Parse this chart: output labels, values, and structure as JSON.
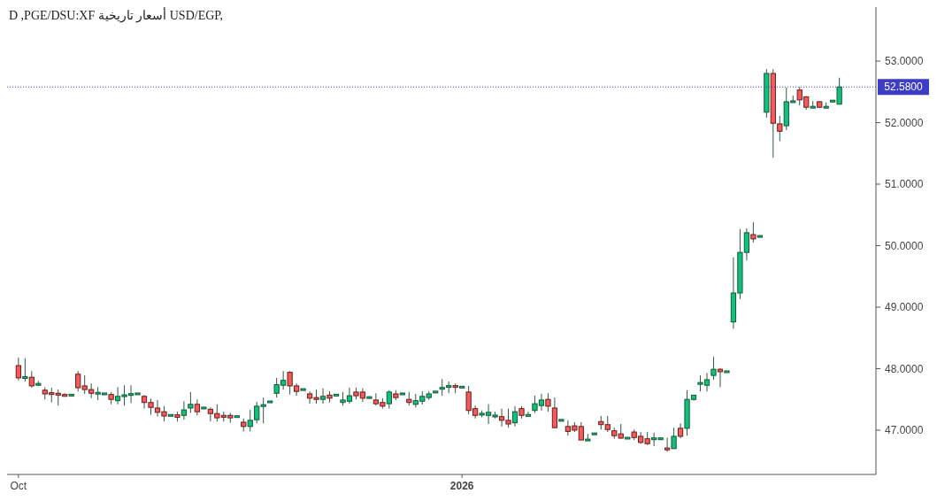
{
  "chart_data": {
    "type": "candlestick",
    "title": "D ,PGE/DSU:XF أسعار تاريخية USD/EGP,",
    "categories": [
      "Oct",
      null,
      null,
      null,
      null,
      null,
      null,
      null,
      null,
      null,
      null,
      null,
      null,
      null,
      null,
      null,
      null,
      null,
      null,
      null,
      null,
      null,
      null,
      null,
      null,
      null,
      null,
      null,
      null,
      null,
      null,
      null,
      null,
      null,
      null,
      null,
      null,
      null,
      null,
      null,
      null,
      null,
      null,
      null,
      null,
      null,
      null,
      null,
      null,
      null,
      null,
      null,
      null,
      null,
      null,
      null,
      null,
      null,
      null,
      null,
      null,
      null,
      null,
      null,
      null,
      null,
      null,
      "2026",
      null,
      null,
      null,
      null,
      null,
      null,
      null,
      null,
      null,
      null,
      null,
      null,
      null,
      null,
      null,
      null,
      null,
      null,
      null,
      null,
      null,
      null,
      null,
      null,
      null,
      null,
      null,
      null,
      null,
      null,
      null,
      null,
      null,
      null,
      null,
      null,
      null,
      null,
      null,
      null,
      null,
      null,
      null,
      null,
      null,
      null,
      null,
      null,
      null,
      null,
      null,
      null,
      null,
      null,
      null,
      null,
      null
    ],
    "ohlc": [
      [
        48.05,
        48.18,
        47.81,
        47.85
      ],
      [
        47.85,
        48.17,
        47.79,
        47.86
      ],
      [
        47.86,
        47.96,
        47.69,
        47.72
      ],
      [
        47.74,
        47.8,
        47.72,
        47.75
      ],
      [
        47.65,
        47.7,
        47.5,
        47.59
      ],
      [
        47.6,
        47.69,
        47.45,
        47.59
      ],
      [
        47.6,
        47.66,
        47.4,
        47.57
      ],
      [
        47.58,
        47.6,
        47.55,
        47.55
      ],
      [
        47.57,
        47.58,
        47.56,
        47.57
      ],
      [
        47.91,
        47.96,
        47.63,
        47.69
      ],
      [
        47.72,
        47.89,
        47.59,
        47.66
      ],
      [
        47.66,
        47.76,
        47.52,
        47.6
      ],
      [
        47.6,
        47.7,
        47.49,
        47.6
      ],
      [
        47.59,
        47.6,
        47.58,
        47.59
      ],
      [
        47.58,
        47.62,
        47.42,
        47.5
      ],
      [
        47.48,
        47.7,
        47.42,
        47.55
      ],
      [
        47.56,
        47.73,
        47.4,
        47.56
      ],
      [
        47.58,
        47.73,
        47.44,
        47.58
      ],
      [
        47.59,
        47.6,
        47.58,
        47.59
      ],
      [
        47.55,
        47.57,
        47.35,
        47.45
      ],
      [
        47.45,
        47.51,
        47.25,
        47.37
      ],
      [
        47.36,
        47.49,
        47.22,
        47.29
      ],
      [
        47.3,
        47.39,
        47.14,
        47.23
      ],
      [
        47.24,
        47.25,
        47.23,
        47.24
      ],
      [
        47.25,
        47.3,
        47.14,
        47.21
      ],
      [
        47.24,
        47.47,
        47.17,
        47.33
      ],
      [
        47.36,
        47.62,
        47.28,
        47.42
      ],
      [
        47.42,
        47.5,
        47.24,
        47.3
      ],
      [
        47.36,
        47.37,
        47.35,
        47.36
      ],
      [
        47.34,
        47.37,
        47.14,
        47.27
      ],
      [
        47.27,
        47.42,
        47.14,
        47.2
      ],
      [
        47.24,
        47.3,
        47.14,
        47.21
      ],
      [
        47.24,
        47.28,
        47.12,
        47.2
      ],
      [
        47.22,
        47.23,
        47.21,
        47.22
      ],
      [
        47.13,
        47.19,
        46.98,
        47.06
      ],
      [
        47.06,
        47.33,
        46.98,
        47.16
      ],
      [
        47.17,
        47.46,
        47.11,
        47.39
      ],
      [
        47.4,
        47.53,
        47.11,
        47.4
      ],
      [
        47.46,
        47.47,
        47.45,
        47.46
      ],
      [
        47.6,
        47.85,
        47.53,
        47.74
      ],
      [
        47.73,
        47.96,
        47.66,
        47.81
      ],
      [
        47.94,
        47.96,
        47.58,
        47.72
      ],
      [
        47.72,
        47.76,
        47.56,
        47.63
      ],
      [
        47.66,
        47.67,
        47.65,
        47.66
      ],
      [
        47.59,
        47.63,
        47.43,
        47.52
      ],
      [
        47.53,
        47.66,
        47.43,
        47.5
      ],
      [
        47.5,
        47.68,
        47.43,
        47.55
      ],
      [
        47.57,
        47.63,
        47.45,
        47.52
      ],
      [
        47.57,
        47.58,
        47.56,
        47.57
      ],
      [
        47.45,
        47.62,
        47.4,
        47.49
      ],
      [
        47.47,
        47.69,
        47.43,
        47.56
      ],
      [
        47.62,
        47.69,
        47.5,
        47.56
      ],
      [
        47.62,
        47.68,
        47.46,
        47.52
      ],
      [
        47.53,
        47.54,
        47.52,
        47.53
      ],
      [
        47.49,
        47.6,
        47.4,
        47.43
      ],
      [
        47.45,
        47.52,
        47.35,
        47.39
      ],
      [
        47.43,
        47.65,
        47.35,
        47.62
      ],
      [
        47.59,
        47.65,
        47.49,
        47.53
      ],
      [
        47.59,
        47.6,
        47.58,
        47.59
      ],
      [
        47.5,
        47.62,
        47.4,
        47.45
      ],
      [
        47.42,
        47.59,
        47.37,
        47.48
      ],
      [
        47.47,
        47.63,
        47.42,
        47.55
      ],
      [
        47.53,
        47.63,
        47.49,
        47.59
      ],
      [
        47.62,
        47.63,
        47.61,
        47.62
      ],
      [
        47.68,
        47.83,
        47.56,
        47.68
      ],
      [
        47.71,
        47.79,
        47.6,
        47.71
      ],
      [
        47.72,
        47.76,
        47.6,
        47.7
      ],
      [
        47.7,
        47.71,
        47.69,
        47.7
      ],
      [
        47.62,
        47.72,
        47.26,
        47.32
      ],
      [
        47.35,
        47.4,
        47.19,
        47.24
      ],
      [
        47.26,
        47.32,
        47.21,
        47.26
      ],
      [
        47.24,
        47.42,
        47.1,
        47.29
      ],
      [
        47.23,
        47.3,
        47.19,
        47.23
      ],
      [
        47.22,
        47.35,
        47.06,
        47.16
      ],
      [
        47.16,
        47.35,
        47.04,
        47.1
      ],
      [
        47.12,
        47.39,
        47.06,
        47.3
      ],
      [
        47.35,
        47.39,
        47.19,
        47.24
      ],
      [
        47.24,
        47.3,
        47.23,
        47.24
      ],
      [
        47.32,
        47.56,
        47.28,
        47.43
      ],
      [
        47.4,
        47.59,
        47.32,
        47.49
      ],
      [
        47.5,
        47.6,
        47.3,
        47.39
      ],
      [
        47.36,
        47.53,
        47.04,
        47.04
      ],
      [
        47.16,
        47.17,
        47.15,
        47.16
      ],
      [
        47.06,
        47.16,
        46.91,
        46.98
      ],
      [
        47.07,
        47.13,
        46.97,
        47.0
      ],
      [
        47.06,
        47.13,
        46.84,
        46.84
      ],
      [
        46.84,
        46.94,
        46.84,
        46.84
      ],
      [
        46.94,
        46.95,
        46.93,
        46.94
      ],
      [
        47.14,
        47.23,
        47.01,
        47.09
      ],
      [
        47.09,
        47.23,
        46.97,
        47.01
      ],
      [
        46.99,
        47.04,
        46.86,
        46.91
      ],
      [
        46.94,
        47.1,
        46.86,
        46.87
      ],
      [
        46.87,
        46.88,
        46.86,
        46.87
      ],
      [
        46.97,
        47.01,
        46.84,
        46.88
      ],
      [
        46.9,
        46.97,
        46.78,
        46.8
      ],
      [
        46.86,
        46.97,
        46.76,
        46.78
      ],
      [
        46.86,
        46.96,
        46.74,
        46.86
      ],
      [
        46.86,
        46.87,
        46.85,
        46.86
      ],
      [
        46.71,
        46.88,
        46.65,
        46.68
      ],
      [
        46.7,
        47.04,
        46.7,
        46.9
      ],
      [
        47.03,
        47.11,
        46.87,
        46.9
      ],
      [
        47.03,
        47.65,
        46.91,
        47.5
      ],
      [
        47.5,
        47.57,
        47.48,
        47.57
      ],
      [
        47.76,
        47.89,
        47.63,
        47.76
      ],
      [
        47.73,
        47.93,
        47.63,
        47.82
      ],
      [
        47.89,
        48.19,
        47.82,
        47.99
      ],
      [
        47.99,
        48.01,
        47.7,
        47.95
      ],
      [
        47.95,
        47.96,
        47.94,
        47.95
      ],
      [
        48.76,
        49.81,
        48.65,
        49.23
      ],
      [
        49.23,
        50.27,
        49.13,
        49.89
      ],
      [
        49.89,
        50.28,
        49.76,
        50.21
      ],
      [
        50.18,
        50.38,
        50.05,
        50.11
      ],
      [
        50.15,
        50.16,
        50.14,
        50.15
      ],
      [
        52.17,
        52.87,
        52.08,
        52.8
      ],
      [
        52.8,
        52.87,
        51.43,
        51.99
      ],
      [
        51.98,
        52.11,
        51.7,
        51.86
      ],
      [
        51.95,
        52.57,
        51.88,
        52.34
      ],
      [
        52.34,
        52.44,
        52.33,
        52.34
      ],
      [
        52.53,
        52.58,
        52.28,
        52.37
      ],
      [
        52.42,
        52.43,
        52.21,
        52.25
      ],
      [
        52.25,
        52.35,
        52.24,
        52.25
      ],
      [
        52.34,
        52.35,
        52.24,
        52.25
      ],
      [
        52.25,
        52.33,
        52.24,
        52.25
      ],
      [
        52.35,
        52.36,
        52.34,
        52.35
      ],
      [
        52.3,
        52.73,
        52.3,
        52.58
      ]
    ],
    "ylim": [
      46.28,
      53.85
    ],
    "yticks": [
      {
        "value": 47,
        "label": "47.0000"
      },
      {
        "value": 48,
        "label": "48.0000"
      },
      {
        "value": 49,
        "label": "49.0000"
      },
      {
        "value": 50,
        "label": "50.0000"
      },
      {
        "value": 51,
        "label": "51.0000"
      },
      {
        "value": 52,
        "label": "52.0000"
      },
      {
        "value": 53,
        "label": "53.0000"
      }
    ],
    "ref_lines": [
      {
        "axis": "y",
        "value": 52.58,
        "label": "52.5800",
        "color": "#3d3dc8",
        "line_style": "dotted"
      }
    ],
    "grid": false
  }
}
